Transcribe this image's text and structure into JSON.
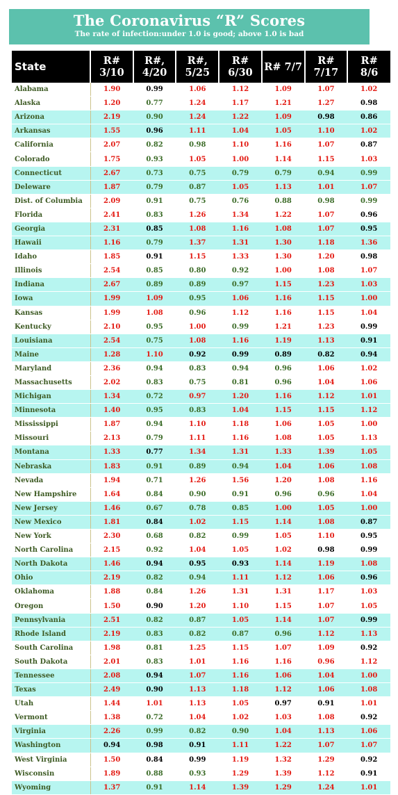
{
  "header": {
    "title": "The Coronavirus “R” Scores",
    "subtitle": "The rate of infection:under 1.0 is good; above 1.0 is bad"
  },
  "colors": {
    "banner": "#5cc1ad",
    "row_shade": "#b7f5f0",
    "red": "#e31a12",
    "green": "#3b6b27",
    "black": "#000000"
  },
  "chart_data": {
    "type": "table",
    "columns": [
      "State",
      "R# 3/10",
      "R#, 4/20",
      "R#, 5/25",
      "R# 6/30",
      "R# 7/7",
      "R# 7/17",
      "R# 8/6"
    ],
    "rows": [
      {
        "state": "Alabama",
        "shade": false,
        "values": [
          "1.90",
          "0.99",
          "1.06",
          "1.12",
          "1.09",
          "1.07",
          "1.02"
        ],
        "colors": [
          "red",
          "black",
          "red",
          "red",
          "red",
          "red",
          "red"
        ]
      },
      {
        "state": "Alaska",
        "shade": false,
        "values": [
          "1.20",
          "0.77",
          "1.24",
          "1.17",
          "1.21",
          "1.27",
          "0.98"
        ],
        "colors": [
          "red",
          "green",
          "red",
          "red",
          "red",
          "red",
          "black"
        ]
      },
      {
        "state": "Arizona",
        "shade": true,
        "values": [
          "2.19",
          "0.90",
          "1.24",
          "1.22",
          "1.09",
          "0.98",
          "0.86"
        ],
        "colors": [
          "red",
          "green",
          "red",
          "red",
          "red",
          "black",
          "black"
        ]
      },
      {
        "state": "Arkansas",
        "shade": true,
        "values": [
          "1.55",
          "0.96",
          "1.11",
          "1.04",
          "1.05",
          "1.10",
          "1.02"
        ],
        "colors": [
          "red",
          "black",
          "red",
          "red",
          "red",
          "red",
          "red"
        ]
      },
      {
        "state": "California",
        "shade": false,
        "values": [
          "2.07",
          "0.82",
          "0.98",
          "1.10",
          "1.16",
          "1.07",
          "0.87"
        ],
        "colors": [
          "red",
          "green",
          "green",
          "red",
          "red",
          "red",
          "black"
        ]
      },
      {
        "state": "Colorado",
        "shade": false,
        "values": [
          "1.75",
          "0.93",
          "1.05",
          "1.00",
          "1.14",
          "1.15",
          "1.03"
        ],
        "colors": [
          "red",
          "green",
          "red",
          "red",
          "red",
          "red",
          "red"
        ]
      },
      {
        "state": "Connecticut",
        "shade": true,
        "values": [
          "2.67",
          "0.73",
          "0.75",
          "0.79",
          "0.79",
          "0.94",
          "0.99"
        ],
        "colors": [
          "red",
          "green",
          "green",
          "green",
          "green",
          "green",
          "green"
        ]
      },
      {
        "state": "Deleware",
        "shade": true,
        "values": [
          "1.87",
          "0.79",
          "0.87",
          "1.05",
          "1.13",
          "1.01",
          "1.07"
        ],
        "colors": [
          "red",
          "green",
          "green",
          "red",
          "red",
          "red",
          "red"
        ]
      },
      {
        "state": "Dist. of Columbia",
        "shade": false,
        "values": [
          "2.09",
          "0.91",
          "0.75",
          "0.76",
          "0.88",
          "0.98",
          "0.99"
        ],
        "colors": [
          "red",
          "green",
          "green",
          "green",
          "green",
          "green",
          "green"
        ]
      },
      {
        "state": "Florida",
        "shade": false,
        "values": [
          "2.41",
          "0.83",
          "1.26",
          "1.34",
          "1.22",
          "1.07",
          "0.96"
        ],
        "colors": [
          "red",
          "green",
          "red",
          "red",
          "red",
          "red",
          "black"
        ]
      },
      {
        "state": "Georgia",
        "shade": true,
        "values": [
          "2.31",
          "0.85",
          "1.08",
          "1.16",
          "1.08",
          "1.07",
          "0.95"
        ],
        "colors": [
          "red",
          "black",
          "red",
          "red",
          "red",
          "red",
          "black"
        ]
      },
      {
        "state": "Hawaii",
        "shade": true,
        "values": [
          "1.16",
          "0.79",
          "1.37",
          "1.31",
          "1.30",
          "1.18",
          "1.36"
        ],
        "colors": [
          "red",
          "green",
          "red",
          "red",
          "red",
          "red",
          "red"
        ]
      },
      {
        "state": "Idaho",
        "shade": false,
        "values": [
          "1.85",
          "0.91",
          "1.15",
          "1.33",
          "1.30",
          "1.20",
          "0.98"
        ],
        "colors": [
          "red",
          "black",
          "red",
          "red",
          "red",
          "red",
          "black"
        ]
      },
      {
        "state": "Illinois",
        "shade": false,
        "values": [
          "2.54",
          "0.85",
          "0.80",
          "0.92",
          "1.00",
          "1.08",
          "1.07"
        ],
        "colors": [
          "red",
          "green",
          "green",
          "green",
          "red",
          "red",
          "red"
        ]
      },
      {
        "state": "Indiana",
        "shade": true,
        "values": [
          "2.67",
          "0.89",
          "0.89",
          "0.97",
          "1.15",
          "1.23",
          "1.03"
        ],
        "colors": [
          "red",
          "green",
          "green",
          "green",
          "red",
          "red",
          "red"
        ]
      },
      {
        "state": "Iowa",
        "shade": true,
        "values": [
          "1.99",
          "1.09",
          "0.95",
          "1.06",
          "1.16",
          "1.15",
          "1.00"
        ],
        "colors": [
          "red",
          "red",
          "green",
          "red",
          "red",
          "red",
          "red"
        ]
      },
      {
        "state": "Kansas",
        "shade": false,
        "values": [
          "1.99",
          "1.08",
          "0.96",
          "1.12",
          "1.16",
          "1.15",
          "1.04"
        ],
        "colors": [
          "red",
          "red",
          "green",
          "red",
          "red",
          "red",
          "red"
        ]
      },
      {
        "state": "Kentucky",
        "shade": false,
        "values": [
          "2.10",
          "0.95",
          "1.00",
          "0.99",
          "1.21",
          "1.23",
          "0.99"
        ],
        "colors": [
          "red",
          "green",
          "red",
          "green",
          "red",
          "red",
          "black"
        ]
      },
      {
        "state": "Louisiana",
        "shade": true,
        "values": [
          "2.54",
          "0.75",
          "1.08",
          "1.16",
          "1.19",
          "1.13",
          "0.91"
        ],
        "colors": [
          "red",
          "green",
          "red",
          "red",
          "red",
          "red",
          "black"
        ]
      },
      {
        "state": "Maine",
        "shade": true,
        "values": [
          "1.28",
          "1.10",
          "0.92",
          "0.99",
          "0.89",
          "0.82",
          "0.94"
        ],
        "colors": [
          "red",
          "red",
          "black",
          "black",
          "black",
          "black",
          "black"
        ]
      },
      {
        "state": "Maryland",
        "shade": false,
        "values": [
          "2.36",
          "0.94",
          "0.83",
          "0.94",
          "0.96",
          "1.06",
          "1.02"
        ],
        "colors": [
          "red",
          "green",
          "green",
          "green",
          "green",
          "red",
          "red"
        ]
      },
      {
        "state": "Massachusetts",
        "shade": false,
        "values": [
          "2.02",
          "0.83",
          "0.75",
          "0.81",
          "0.96",
          "1.04",
          "1.06"
        ],
        "colors": [
          "red",
          "green",
          "green",
          "green",
          "green",
          "red",
          "red"
        ]
      },
      {
        "state": "Michigan",
        "shade": true,
        "values": [
          "1.34",
          "0.72",
          "0.97",
          "1.20",
          "1.16",
          "1.12",
          "1.01"
        ],
        "colors": [
          "red",
          "green",
          "red",
          "red",
          "red",
          "red",
          "red"
        ]
      },
      {
        "state": "Minnesota",
        "shade": true,
        "values": [
          "1.40",
          "0.95",
          "0.83",
          "1.04",
          "1.15",
          "1.15",
          "1.12"
        ],
        "colors": [
          "red",
          "green",
          "green",
          "red",
          "red",
          "red",
          "red"
        ]
      },
      {
        "state": "Mississippi",
        "shade": false,
        "values": [
          "1.87",
          "0.94",
          "1.10",
          "1.18",
          "1.06",
          "1.05",
          "1.00"
        ],
        "colors": [
          "red",
          "green",
          "red",
          "red",
          "red",
          "red",
          "red"
        ]
      },
      {
        "state": "Missouri",
        "shade": false,
        "values": [
          "2.13",
          "0.79",
          "1.11",
          "1.16",
          "1.08",
          "1.05",
          "1.13"
        ],
        "colors": [
          "red",
          "green",
          "red",
          "red",
          "red",
          "red",
          "red"
        ]
      },
      {
        "state": "Montana",
        "shade": true,
        "values": [
          "1.33",
          "0.77",
          "1.34",
          "1.31",
          "1.33",
          "1.39",
          "1.05"
        ],
        "colors": [
          "red",
          "black",
          "red",
          "red",
          "red",
          "red",
          "red"
        ]
      },
      {
        "state": "Nebraska",
        "shade": true,
        "values": [
          "1.83",
          "0.91",
          "0.89",
          "0.94",
          "1.04",
          "1.06",
          "1.08"
        ],
        "colors": [
          "red",
          "green",
          "green",
          "green",
          "red",
          "red",
          "red"
        ]
      },
      {
        "state": "Nevada",
        "shade": false,
        "values": [
          "1.94",
          "0.71",
          "1.26",
          "1.56",
          "1.20",
          "1.08",
          "1.16"
        ],
        "colors": [
          "red",
          "green",
          "red",
          "red",
          "red",
          "red",
          "red"
        ]
      },
      {
        "state": "New Hampshire",
        "shade": false,
        "values": [
          "1.64",
          "0.84",
          "0.90",
          "0.91",
          "0.96",
          "0.96",
          "1.04"
        ],
        "colors": [
          "red",
          "green",
          "green",
          "green",
          "green",
          "green",
          "red"
        ]
      },
      {
        "state": "New Jersey",
        "shade": true,
        "values": [
          "1.46",
          "0.67",
          "0.78",
          "0.85",
          "1.00",
          "1.05",
          "1.00"
        ],
        "colors": [
          "red",
          "green",
          "green",
          "green",
          "red",
          "red",
          "red"
        ]
      },
      {
        "state": "New Mexico",
        "shade": true,
        "values": [
          "1.81",
          "0.84",
          "1.02",
          "1.15",
          "1.14",
          "1.08",
          "0.87"
        ],
        "colors": [
          "red",
          "black",
          "red",
          "red",
          "red",
          "red",
          "black"
        ]
      },
      {
        "state": "New York",
        "shade": false,
        "values": [
          "2.30",
          "0.68",
          "0.82",
          "0.99",
          "1.05",
          "1.10",
          "0.95"
        ],
        "colors": [
          "red",
          "green",
          "green",
          "green",
          "red",
          "red",
          "black"
        ]
      },
      {
        "state": "North Carolina",
        "shade": false,
        "values": [
          "2.15",
          "0.92",
          "1.04",
          "1.05",
          "1.02",
          "0.98",
          "0.99"
        ],
        "colors": [
          "red",
          "green",
          "red",
          "red",
          "red",
          "black",
          "black"
        ]
      },
      {
        "state": "North Dakota",
        "shade": true,
        "values": [
          "1.46",
          "0.94",
          "0.95",
          "0.93",
          "1.14",
          "1.19",
          "1.08"
        ],
        "colors": [
          "red",
          "black",
          "black",
          "black",
          "red",
          "red",
          "red"
        ]
      },
      {
        "state": "Ohio",
        "shade": true,
        "values": [
          "2.19",
          "0.82",
          "0.94",
          "1.11",
          "1.12",
          "1.06",
          "0.96"
        ],
        "colors": [
          "red",
          "green",
          "green",
          "red",
          "red",
          "red",
          "black"
        ]
      },
      {
        "state": "Oklahoma",
        "shade": false,
        "values": [
          "1.88",
          "0.84",
          "1.26",
          "1.31",
          "1.31",
          "1.17",
          "1.03"
        ],
        "colors": [
          "red",
          "green",
          "red",
          "red",
          "red",
          "red",
          "red"
        ]
      },
      {
        "state": "Oregon",
        "shade": false,
        "values": [
          "1.50",
          "0.90",
          "1.20",
          "1.10",
          "1.15",
          "1.07",
          "1.05"
        ],
        "colors": [
          "red",
          "black",
          "red",
          "red",
          "red",
          "red",
          "red"
        ]
      },
      {
        "state": "Pennsylvania",
        "shade": true,
        "values": [
          "2.51",
          "0.82",
          "0.87",
          "1.05",
          "1.14",
          "1.07",
          "0.99"
        ],
        "colors": [
          "red",
          "green",
          "green",
          "red",
          "red",
          "red",
          "black"
        ]
      },
      {
        "state": "Rhode Island",
        "shade": true,
        "values": [
          "2.19",
          "0.83",
          "0.82",
          "0.87",
          "0.96",
          "1.12",
          "1.13"
        ],
        "colors": [
          "red",
          "green",
          "green",
          "green",
          "green",
          "red",
          "red"
        ]
      },
      {
        "state": "South Carolina",
        "shade": false,
        "values": [
          "1.98",
          "0.81",
          "1.25",
          "1.15",
          "1.07",
          "1.09",
          "0.92"
        ],
        "colors": [
          "red",
          "green",
          "red",
          "red",
          "red",
          "red",
          "black"
        ]
      },
      {
        "state": "South Dakota",
        "shade": false,
        "values": [
          "2.01",
          "0.83",
          "1.01",
          "1.16",
          "1.16",
          "0.96",
          "1.12"
        ],
        "colors": [
          "red",
          "green",
          "red",
          "red",
          "red",
          "red",
          "red"
        ]
      },
      {
        "state": "Tennessee",
        "shade": true,
        "values": [
          "2.08",
          "0.94",
          "1.07",
          "1.16",
          "1.06",
          "1.04",
          "1.00"
        ],
        "colors": [
          "red",
          "black",
          "red",
          "red",
          "red",
          "red",
          "red"
        ]
      },
      {
        "state": "Texas",
        "shade": true,
        "values": [
          "2.49",
          "0.90",
          "1.13",
          "1.18",
          "1.12",
          "1.06",
          "1.08"
        ],
        "colors": [
          "red",
          "black",
          "red",
          "red",
          "red",
          "red",
          "red"
        ]
      },
      {
        "state": "Utah",
        "shade": false,
        "values": [
          "1.44",
          "1.01",
          "1.13",
          "1.05",
          "0.97",
          "0.91",
          "1.01"
        ],
        "colors": [
          "red",
          "red",
          "red",
          "red",
          "black",
          "black",
          "red"
        ]
      },
      {
        "state": "Vermont",
        "shade": false,
        "values": [
          "1.38",
          "0.72",
          "1.04",
          "1.02",
          "1.03",
          "1.08",
          "0.92"
        ],
        "colors": [
          "red",
          "green",
          "red",
          "red",
          "red",
          "red",
          "black"
        ]
      },
      {
        "state": "Virginia",
        "shade": true,
        "values": [
          "2.26",
          "0.99",
          "0.82",
          "0.90",
          "1.04",
          "1.13",
          "1.06"
        ],
        "colors": [
          "red",
          "green",
          "green",
          "green",
          "red",
          "red",
          "red"
        ]
      },
      {
        "state": "Washington",
        "shade": true,
        "values": [
          "0.94",
          "0.98",
          "0.91",
          "1.11",
          "1.22",
          "1.07",
          "1.07"
        ],
        "colors": [
          "black",
          "black",
          "black",
          "red",
          "red",
          "red",
          "red"
        ]
      },
      {
        "state": "West Virginia",
        "shade": false,
        "values": [
          "1.50",
          "0.84",
          "0.99",
          "1.19",
          "1.32",
          "1.29",
          "0.92"
        ],
        "colors": [
          "red",
          "black",
          "black",
          "red",
          "red",
          "red",
          "black"
        ]
      },
      {
        "state": "Wisconsin",
        "shade": false,
        "values": [
          "1.89",
          "0.88",
          "0.93",
          "1.29",
          "1.39",
          "1.12",
          "0.91"
        ],
        "colors": [
          "red",
          "green",
          "green",
          "red",
          "red",
          "red",
          "black"
        ]
      },
      {
        "state": "Wyoming",
        "shade": true,
        "values": [
          "1.37",
          "0.91",
          "1.14",
          "1.39",
          "1.29",
          "1.24",
          "1.01"
        ],
        "colors": [
          "red",
          "green",
          "red",
          "red",
          "red",
          "red",
          "red"
        ]
      }
    ]
  }
}
